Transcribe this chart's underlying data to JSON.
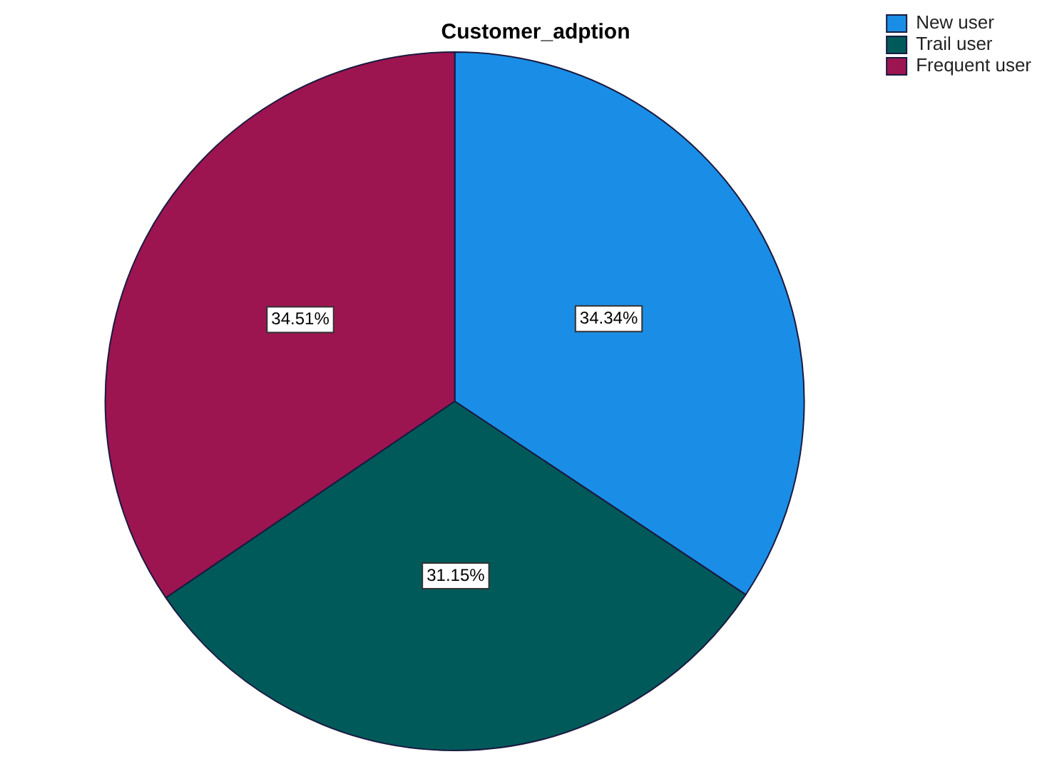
{
  "chart_data": {
    "type": "pie",
    "title": "Customer_adption",
    "categories": [
      "New user",
      "Trail user",
      "Frequent user"
    ],
    "values": [
      34.34,
      31.15,
      34.51
    ],
    "colors": [
      "#1a8ee6",
      "#005a5a",
      "#9c1550"
    ],
    "value_labels": [
      "34.34%",
      "31.15%",
      "34.51%"
    ],
    "legend": "top right"
  }
}
